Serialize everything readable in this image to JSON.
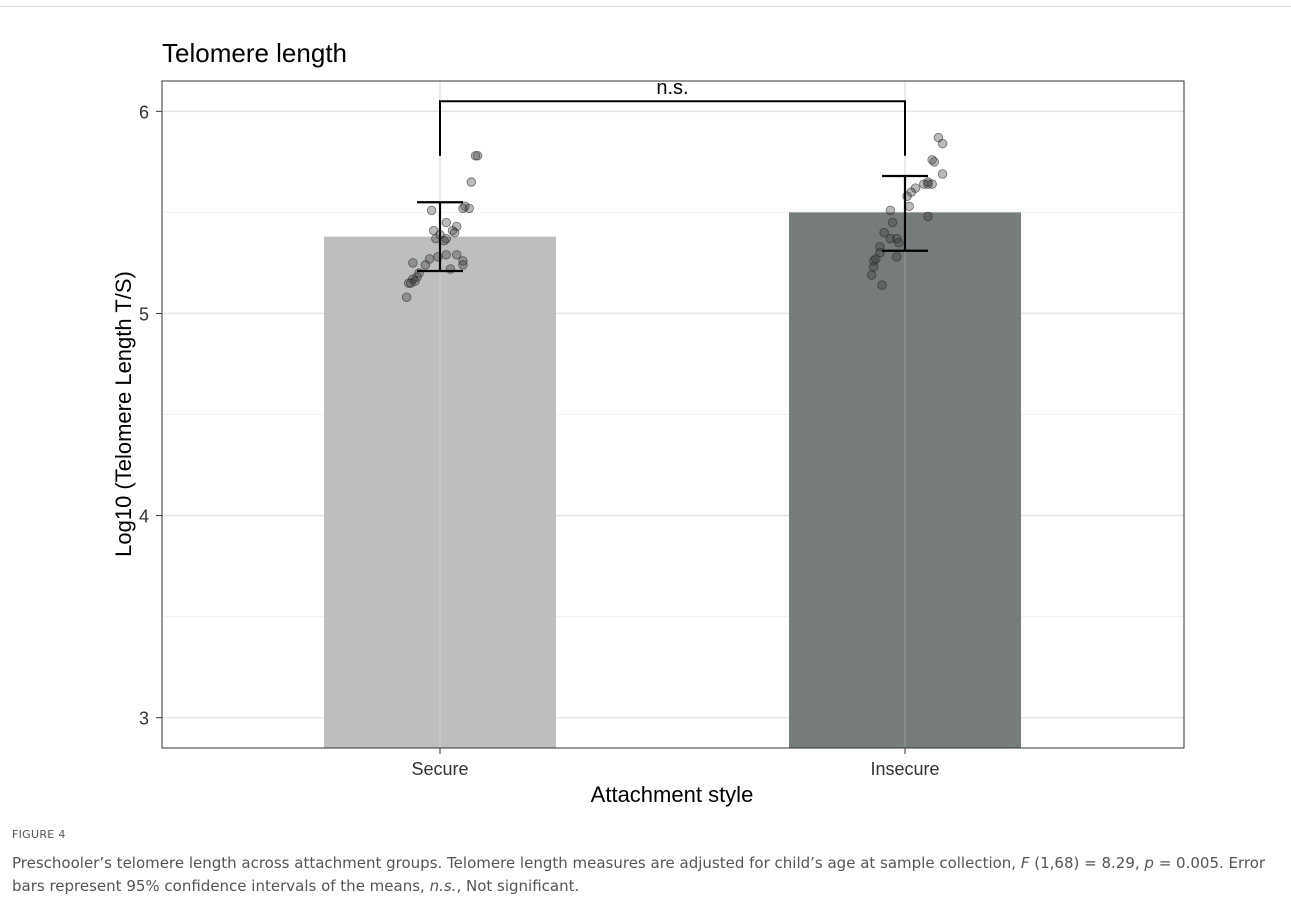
{
  "chart_data": {
    "type": "bar",
    "title": "Telomere length",
    "xlabel": "Attachment style",
    "ylabel": "Log10  (Telomere Length T/S)",
    "categories": [
      "Secure",
      "Insecure"
    ],
    "values": [
      5.38,
      5.5
    ],
    "ci": [
      [
        5.21,
        5.55
      ],
      [
        5.31,
        5.68
      ]
    ],
    "ylim": [
      2.85,
      6.15
    ],
    "yticks": [
      3,
      4,
      5,
      6
    ],
    "grid": true,
    "significance": {
      "label": "n.s.",
      "between": [
        "Secure",
        "Insecure"
      ],
      "y": 6.05
    },
    "colors": {
      "Secure": "#bcbdbf",
      "Insecure": "#737879"
    },
    "points": [
      {
        "category": "Secure",
        "values": [
          5.78,
          5.78,
          5.65,
          5.53,
          5.52,
          5.52,
          5.51,
          5.45,
          5.43,
          5.41,
          5.41,
          5.4,
          5.39,
          5.37,
          5.37,
          5.36,
          5.29,
          5.29,
          5.28,
          5.27,
          5.26,
          5.25,
          5.24,
          5.24,
          5.22,
          5.2,
          5.18,
          5.17,
          5.16,
          5.15,
          5.15,
          5.08
        ],
        "offsets": [
          0.18,
          0.17,
          0.15,
          0.12,
          0.14,
          0.11,
          -0.04,
          0.03,
          0.08,
          0.06,
          -0.03,
          0.07,
          0.0,
          -0.02,
          0.03,
          0.02,
          0.03,
          0.08,
          -0.01,
          -0.05,
          0.11,
          -0.13,
          0.11,
          -0.07,
          0.05,
          -0.1,
          -0.11,
          -0.13,
          -0.12,
          -0.15,
          -0.14,
          -0.16
        ]
      },
      {
        "category": "Insecure",
        "values": [
          5.87,
          5.84,
          5.76,
          5.75,
          5.69,
          5.65,
          5.64,
          5.64,
          5.64,
          5.62,
          5.6,
          5.58,
          5.53,
          5.51,
          5.48,
          5.45,
          5.4,
          5.37,
          5.37,
          5.35,
          5.33,
          5.3,
          5.28,
          5.27,
          5.26,
          5.23,
          5.19,
          5.14
        ],
        "offsets": [
          0.16,
          0.18,
          0.13,
          0.14,
          0.18,
          0.11,
          0.13,
          0.09,
          0.11,
          0.05,
          0.03,
          0.01,
          0.02,
          -0.07,
          0.11,
          -0.06,
          -0.1,
          -0.07,
          -0.04,
          -0.03,
          -0.12,
          -0.12,
          -0.04,
          -0.14,
          -0.15,
          -0.15,
          -0.16,
          -0.11
        ]
      }
    ]
  },
  "figure": {
    "label": "FIGURE 4",
    "caption_parts": [
      {
        "text": "Preschooler’s telomere length across attachment groups. Telomere length measures are adjusted for child’s age at sample collection, "
      },
      {
        "text": "F",
        "italic": true
      },
      {
        "text": " (1,68) = 8.29, "
      },
      {
        "text": "p",
        "italic": true
      },
      {
        "text": " = 0.005. Error bars represent 95% confidence intervals of the means, "
      },
      {
        "text": "n.s.",
        "italic": true
      },
      {
        "text": ", Not significant."
      }
    ]
  }
}
